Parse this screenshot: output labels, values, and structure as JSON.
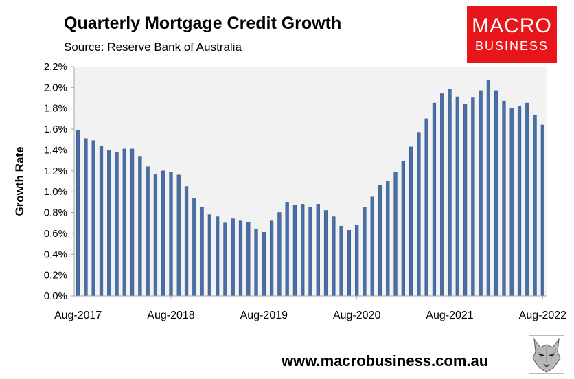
{
  "header": {
    "title": "Quarterly Mortgage Credit Growth",
    "subtitle": "Source: Reserve Bank of Australia"
  },
  "logo": {
    "line1": "MACRO",
    "line2": "BUSINESS",
    "color": "#e8161b"
  },
  "footer": {
    "url": "www.macrobusiness.com.au"
  },
  "chart_data": {
    "type": "bar",
    "title": "Quarterly Mortgage Credit Growth",
    "xlabel": "",
    "ylabel": "Growth Rate",
    "ylim": [
      0,
      2.2
    ],
    "yticks": [
      "0.0%",
      "0.2%",
      "0.4%",
      "0.6%",
      "0.8%",
      "1.0%",
      "1.2%",
      "1.4%",
      "1.6%",
      "1.8%",
      "2.0%",
      "2.2%"
    ],
    "xtick_labels": [
      "Aug-2017",
      "Aug-2018",
      "Aug-2019",
      "Aug-2020",
      "Aug-2021",
      "Aug-2022"
    ],
    "x_start": "Aug-2017",
    "x_end": "Aug-2022",
    "frequency": "monthly",
    "plot_background": "#f2f2f2",
    "bar_color": "#4a6fa5",
    "grid": false,
    "legend": "none",
    "values": [
      1.59,
      1.51,
      1.49,
      1.44,
      1.4,
      1.38,
      1.41,
      1.41,
      1.34,
      1.24,
      1.17,
      1.2,
      1.19,
      1.16,
      1.05,
      0.94,
      0.85,
      0.78,
      0.76,
      0.7,
      0.74,
      0.72,
      0.71,
      0.64,
      0.61,
      0.72,
      0.8,
      0.9,
      0.87,
      0.88,
      0.85,
      0.88,
      0.82,
      0.76,
      0.67,
      0.63,
      0.68,
      0.85,
      0.95,
      1.06,
      1.1,
      1.19,
      1.29,
      1.43,
      1.57,
      1.7,
      1.85,
      1.94,
      1.98,
      1.91,
      1.84,
      1.9,
      1.97,
      2.07,
      1.97,
      1.87,
      1.8,
      1.82,
      1.85,
      1.73,
      1.64
    ]
  }
}
